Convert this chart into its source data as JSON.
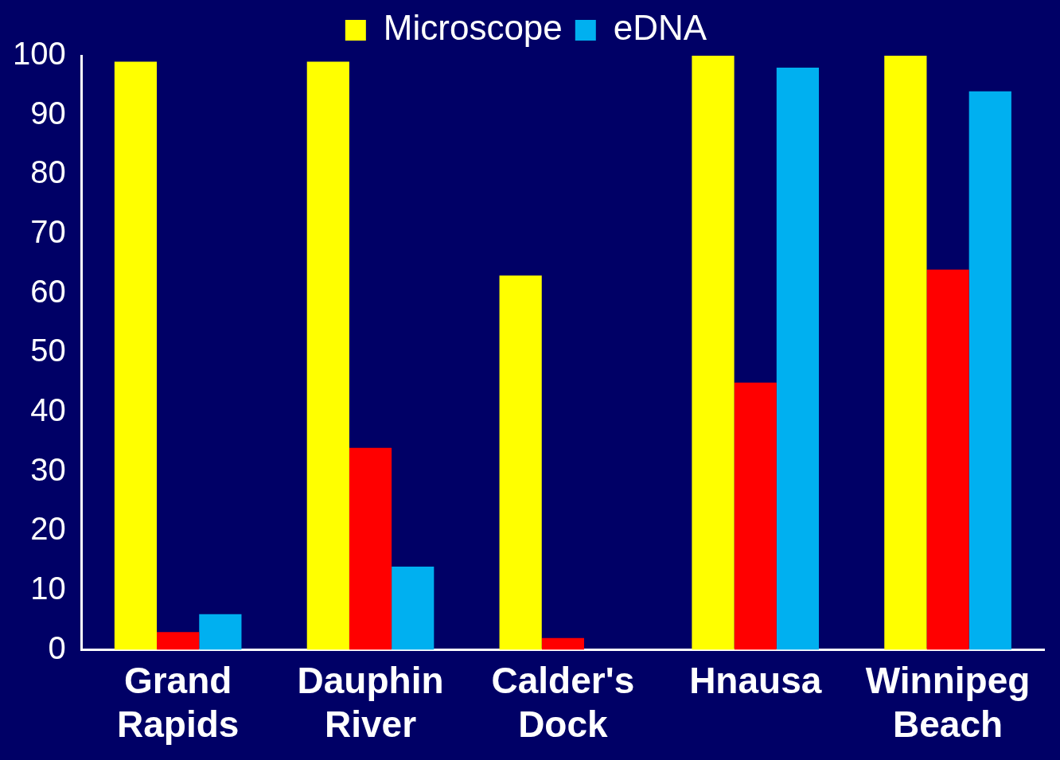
{
  "chart_data": {
    "type": "bar",
    "categories": [
      "Grand Rapids",
      "Dauphin River",
      "Calder's Dock",
      "Hnausa",
      "Winnipeg Beach"
    ],
    "series": [
      {
        "name": "Microscope",
        "color": "#ffff00",
        "values": [
          99,
          99,
          63,
          100,
          100
        ]
      },
      {
        "color": "#ff0000",
        "values": [
          3,
          34,
          2,
          45,
          64
        ]
      },
      {
        "name": "eDNA",
        "color": "#00b0f0",
        "values": [
          6,
          14,
          0,
          98,
          94
        ]
      }
    ],
    "ylim": [
      0,
      100
    ],
    "yticks": [
      0,
      10,
      20,
      30,
      40,
      50,
      60,
      70,
      80,
      90,
      100
    ],
    "grid": false,
    "legend": "top"
  }
}
